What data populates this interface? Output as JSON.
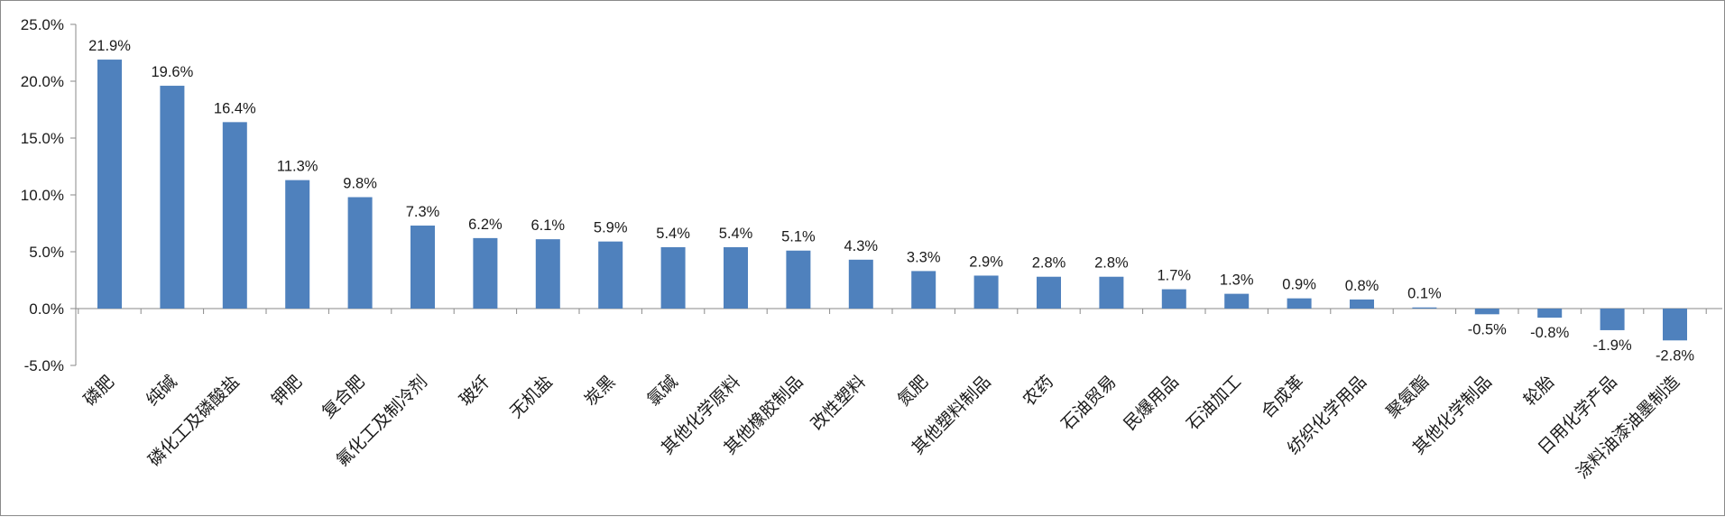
{
  "chart_data": {
    "type": "bar",
    "title": "",
    "xlabel": "",
    "ylabel": "",
    "ylim": [
      -5.0,
      25.0
    ],
    "yticks": [
      -5.0,
      0.0,
      5.0,
      10.0,
      15.0,
      20.0,
      25.0
    ],
    "ytick_labels": [
      "-5.0%",
      "0.0%",
      "5.0%",
      "10.0%",
      "15.0%",
      "20.0%",
      "25.0%"
    ],
    "categories": [
      "磷肥",
      "纯碱",
      "磷化工及磷酸盐",
      "钾肥",
      "复合肥",
      "氟化工及制冷剂",
      "玻纤",
      "无机盐",
      "炭黑",
      "氯碱",
      "其他化学原料",
      "其他橡胶制品",
      "改性塑料",
      "氮肥",
      "其他塑料制品",
      "农药",
      "石油贸易",
      "民爆用品",
      "石油加工",
      "合成革",
      "纺织化学用品",
      "聚氨酯",
      "其他化学制品",
      "轮胎",
      "日用化学产品",
      "涂料油漆油墨制造"
    ],
    "values": [
      21.9,
      19.6,
      16.4,
      11.3,
      9.8,
      7.3,
      6.2,
      6.1,
      5.9,
      5.4,
      5.4,
      5.1,
      4.3,
      3.3,
      2.9,
      2.8,
      2.8,
      1.7,
      1.3,
      0.9,
      0.8,
      0.1,
      -0.5,
      -0.8,
      -1.9,
      -2.8
    ],
    "data_labels": [
      "21.9%",
      "19.6%",
      "16.4%",
      "11.3%",
      "9.8%",
      "7.3%",
      "6.2%",
      "6.1%",
      "5.9%",
      "5.4%",
      "5.4%",
      "5.1%",
      "4.3%",
      "3.3%",
      "2.9%",
      "2.8%",
      "2.8%",
      "1.7%",
      "1.3%",
      "0.9%",
      "0.8%",
      "0.1%",
      "-0.5%",
      "-0.8%",
      "-1.9%",
      "-2.8%"
    ],
    "bar_color": "#4f81bd",
    "grid": false,
    "legend": "none"
  }
}
